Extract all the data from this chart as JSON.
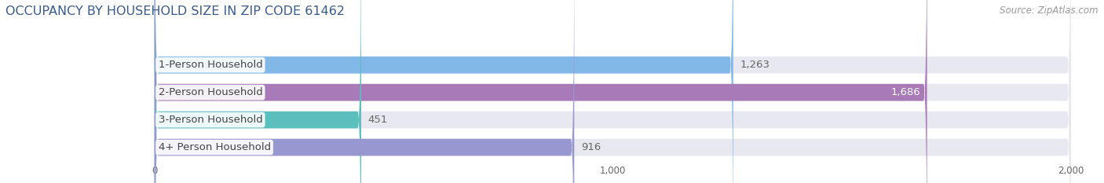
{
  "title": "OCCUPANCY BY HOUSEHOLD SIZE IN ZIP CODE 61462",
  "source": "Source: ZipAtlas.com",
  "categories": [
    "1-Person Household",
    "2-Person Household",
    "3-Person Household",
    "4+ Person Household"
  ],
  "values": [
    1263,
    1686,
    451,
    916
  ],
  "bar_colors": [
    "#82b8e8",
    "#a87ab8",
    "#5bbfbe",
    "#9898d0"
  ],
  "xlim": [
    0,
    2000
  ],
  "xticks": [
    0,
    1000,
    2000
  ],
  "background_color": "#ffffff",
  "bar_bg_color": "#e8e8f0",
  "title_color": "#3a5a8a",
  "source_color": "#999999",
  "label_color": "#444444",
  "value_color_inside": "#ffffff",
  "value_color_outside": "#666666",
  "title_fontsize": 11.5,
  "source_fontsize": 8.5,
  "label_fontsize": 9.5,
  "value_fontsize": 9.5,
  "bar_height": 0.62,
  "fig_width": 14.06,
  "fig_height": 2.33
}
